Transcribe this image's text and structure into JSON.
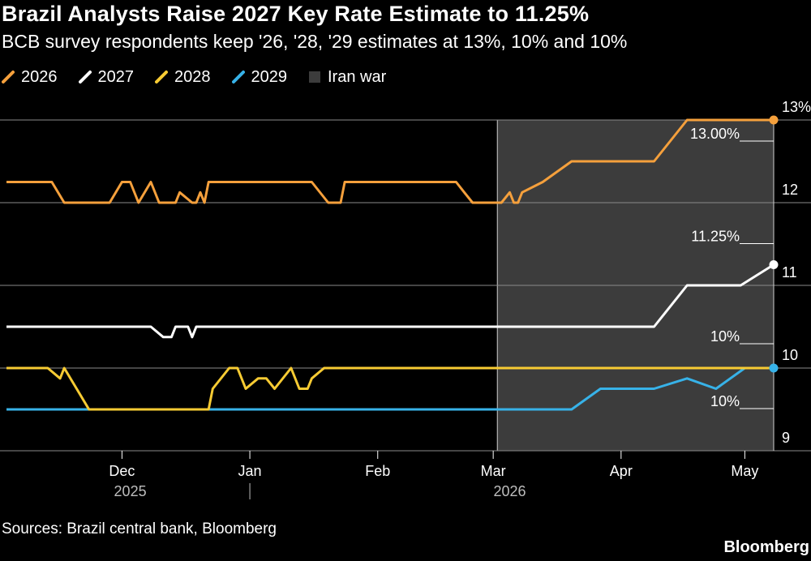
{
  "header": {
    "title": "Brazil Analysts Raise 2027 Key Rate Estimate to 11.25%",
    "subtitle": "BCB survey respondents keep '26, '28, '29 estimates at 13%, 10% and 10%"
  },
  "legend": {
    "items": [
      {
        "label": "2026",
        "color": "#f5a03c",
        "kind": "line"
      },
      {
        "label": "2027",
        "color": "#ffffff",
        "kind": "line"
      },
      {
        "label": "2028",
        "color": "#f7cb33",
        "kind": "line"
      },
      {
        "label": "2029",
        "color": "#37b2e8",
        "kind": "line"
      },
      {
        "label": "Iran war",
        "color": "#3c3c3c",
        "kind": "box"
      }
    ]
  },
  "footer": {
    "source": "Sources: Brazil central bank, Bloomberg",
    "brand": "Bloomberg"
  },
  "chart_data": {
    "type": "line",
    "x_type": "date",
    "xlim": [
      "2025-11-03",
      "2026-05-08"
    ],
    "ylim": [
      9,
      13
    ],
    "y_axis_side": "right",
    "yticks": [
      9,
      10,
      11,
      12,
      13
    ],
    "ytick_labels": [
      "9",
      "10",
      "11",
      "12",
      "13%"
    ],
    "grid": true,
    "xticks": [
      {
        "date": "2025-12-01",
        "label": "Dec"
      },
      {
        "date": "2026-01-01",
        "label": "Jan"
      },
      {
        "date": "2026-02-01",
        "label": "Feb"
      },
      {
        "date": "2026-03-01",
        "label": "Mar"
      },
      {
        "date": "2026-04-01",
        "label": "Apr"
      },
      {
        "date": "2026-05-01",
        "label": "May"
      }
    ],
    "year_labels": [
      {
        "date": "2025-12-03",
        "label": "2025"
      },
      {
        "date": "2026-03-05",
        "label": "2026"
      }
    ],
    "year_divider_date": "2026-01-01",
    "shaded_region": {
      "label": "Iran war",
      "start": "2026-03-02",
      "end": "2026-05-08",
      "color": "#3c3c3c"
    },
    "series": [
      {
        "name": "2026",
        "color": "#f5a03c",
        "points": [
          [
            "2025-11-03",
            12.25
          ],
          [
            "2025-11-14",
            12.25
          ],
          [
            "2025-11-17",
            12.0
          ],
          [
            "2025-11-28",
            12.0
          ],
          [
            "2025-12-01",
            12.25
          ],
          [
            "2025-12-03",
            12.25
          ],
          [
            "2025-12-05",
            12.0
          ],
          [
            "2025-12-08",
            12.25
          ],
          [
            "2025-12-10",
            12.0
          ],
          [
            "2025-12-14",
            12.0
          ],
          [
            "2025-12-15",
            12.125
          ],
          [
            "2025-12-18",
            12.0
          ],
          [
            "2025-12-19",
            12.0
          ],
          [
            "2025-12-20",
            12.125
          ],
          [
            "2025-12-21",
            12.0
          ],
          [
            "2025-12-22",
            12.25
          ],
          [
            "2026-01-16",
            12.25
          ],
          [
            "2026-01-20",
            12.0
          ],
          [
            "2026-01-23",
            12.0
          ],
          [
            "2026-01-24",
            12.25
          ],
          [
            "2026-02-20",
            12.25
          ],
          [
            "2026-02-22",
            12.125
          ],
          [
            "2026-02-24",
            12.0
          ],
          [
            "2026-03-03",
            12.0
          ],
          [
            "2026-03-05",
            12.125
          ],
          [
            "2026-03-06",
            12.0
          ],
          [
            "2026-03-07",
            12.0
          ],
          [
            "2026-03-08",
            12.125
          ],
          [
            "2026-03-13",
            12.25
          ],
          [
            "2026-03-20",
            12.5
          ],
          [
            "2026-04-09",
            12.5
          ],
          [
            "2026-04-17",
            13.0
          ],
          [
            "2026-05-08",
            13.0
          ]
        ],
        "end_label": "13.00%"
      },
      {
        "name": "2027",
        "color": "#ffffff",
        "points": [
          [
            "2025-11-03",
            10.5
          ],
          [
            "2025-12-08",
            10.5
          ],
          [
            "2025-12-11",
            10.375
          ],
          [
            "2025-12-13",
            10.375
          ],
          [
            "2025-12-14",
            10.5
          ],
          [
            "2025-12-17",
            10.5
          ],
          [
            "2025-12-18",
            10.375
          ],
          [
            "2025-12-19",
            10.5
          ],
          [
            "2026-04-09",
            10.5
          ],
          [
            "2026-04-17",
            11.0
          ],
          [
            "2026-04-30",
            11.0
          ],
          [
            "2026-05-08",
            11.25
          ]
        ],
        "end_label": "11.25%"
      },
      {
        "name": "2028",
        "color": "#f7cb33",
        "points": [
          [
            "2025-11-03",
            10.0
          ],
          [
            "2025-11-13",
            10.0
          ],
          [
            "2025-11-16",
            9.875
          ],
          [
            "2025-11-17",
            10.0
          ],
          [
            "2025-11-20",
            9.75
          ],
          [
            "2025-11-23",
            9.5
          ],
          [
            "2025-12-22",
            9.5
          ],
          [
            "2025-12-23",
            9.75
          ],
          [
            "2025-12-27",
            10.0
          ],
          [
            "2025-12-29",
            10.0
          ],
          [
            "2025-12-31",
            9.75
          ],
          [
            "2026-01-03",
            9.875
          ],
          [
            "2026-01-05",
            9.875
          ],
          [
            "2026-01-07",
            9.75
          ],
          [
            "2026-01-11",
            10.0
          ],
          [
            "2026-01-13",
            9.75
          ],
          [
            "2026-01-15",
            9.75
          ],
          [
            "2026-01-16",
            9.875
          ],
          [
            "2026-01-19",
            10.0
          ],
          [
            "2026-05-08",
            10.0
          ]
        ],
        "end_label": "10%"
      },
      {
        "name": "2029",
        "color": "#37b2e8",
        "points": [
          [
            "2025-11-03",
            9.5
          ],
          [
            "2026-03-20",
            9.5
          ],
          [
            "2026-03-27",
            9.75
          ],
          [
            "2026-04-09",
            9.75
          ],
          [
            "2026-04-17",
            9.875
          ],
          [
            "2026-04-24",
            9.75
          ],
          [
            "2026-05-01",
            10.0
          ],
          [
            "2026-05-08",
            10.0
          ]
        ],
        "end_label": "10%"
      }
    ]
  }
}
